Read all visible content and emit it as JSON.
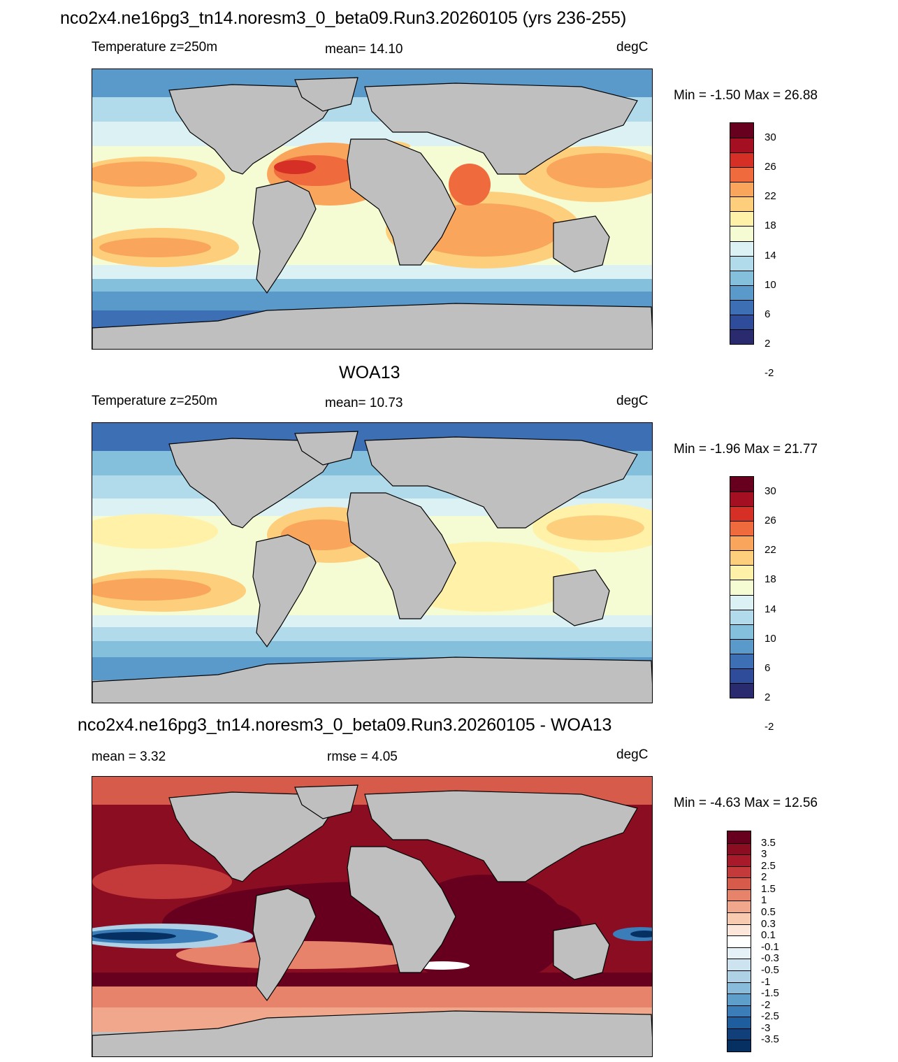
{
  "title_main": "nco2x4.ne16pg3_tn14.noresm3_0_beta09.Run3.20260105 (yrs 236-255)",
  "title_obs": "WOA13",
  "title_diff": "nco2x4.ne16pg3_tn14.noresm3_0_beta09.Run3.20260105 - WOA13",
  "panels": [
    {
      "left_label": "Temperature z=250m",
      "center_label": "mean=  14.10",
      "right_label": "degC",
      "minmax": "Min =  -1.50 Max =  26.88",
      "colorbar": {
        "labels": [
          "30",
          "26",
          "22",
          "18",
          "14",
          "10",
          "6",
          "2",
          "-2"
        ],
        "colors": [
          "#67001f",
          "#a50f22",
          "#d52f26",
          "#ef6a3d",
          "#f9a55b",
          "#fdcf7d",
          "#fff2a8",
          "#f5fbd2",
          "#dcf1f4",
          "#b1dbea",
          "#84bfdc",
          "#5a9acb",
          "#3c6fb3",
          "#2f4c9b",
          "#2a2a6e"
        ]
      }
    },
    {
      "left_label": "Temperature z=250m",
      "center_label": "mean=  10.73",
      "right_label": "degC",
      "minmax": "Min =  -1.96 Max =  21.77",
      "colorbar": {
        "labels": [
          "30",
          "26",
          "22",
          "18",
          "14",
          "10",
          "6",
          "2",
          "-2"
        ],
        "colors": [
          "#67001f",
          "#a50f22",
          "#d52f26",
          "#ef6a3d",
          "#f9a55b",
          "#fdcf7d",
          "#fff2a8",
          "#f5fbd2",
          "#dcf1f4",
          "#b1dbea",
          "#84bfdc",
          "#5a9acb",
          "#3c6fb3",
          "#2f4c9b",
          "#2a2a6e"
        ]
      }
    },
    {
      "left_label": "mean =   3.32",
      "center_label": "rmse =   4.05",
      "right_label": "degC",
      "minmax": "Min =  -4.63 Max =  12.56",
      "colorbar": {
        "labels": [
          "3.5",
          "3",
          "2.5",
          "2",
          "1.5",
          "1",
          "0.5",
          "0.3",
          "0.1",
          "-0.1",
          "-0.3",
          "-0.5",
          "-1",
          "-1.5",
          "-2",
          "-2.5",
          "-3",
          "-3.5"
        ],
        "colors": [
          "#67001f",
          "#8b0d22",
          "#a8192a",
          "#c43a3a",
          "#d65b4b",
          "#e7836b",
          "#f1a78b",
          "#f8cab0",
          "#fbe6d9",
          "#ffffff",
          "#e6f0f7",
          "#cde3ef",
          "#aed1e5",
          "#89bcda",
          "#5e9ecb",
          "#3a7db8",
          "#1f5e9e",
          "#103f79",
          "#053061"
        ]
      }
    }
  ],
  "land_color": "#bfbfbf"
}
